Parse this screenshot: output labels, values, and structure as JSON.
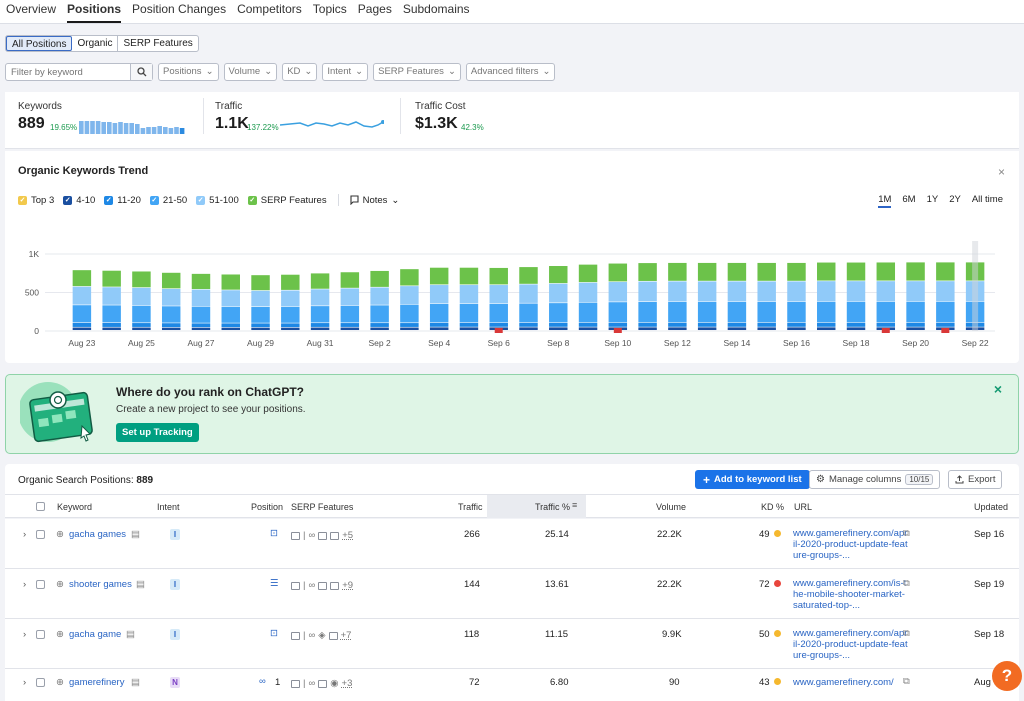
{
  "tabs": [
    "Overview",
    "Positions",
    "Position Changes",
    "Competitors",
    "Topics",
    "Pages",
    "Subdomains"
  ],
  "active_tab": "Positions",
  "segments": [
    "All Positions",
    "Organic",
    "SERP Features"
  ],
  "filter": {
    "placeholder": "Filter by keyword"
  },
  "dropdowns": [
    "Positions",
    "Volume",
    "KD",
    "Intent",
    "SERP Features",
    "Advanced filters"
  ],
  "kpis": [
    {
      "label": "Keywords",
      "value": "889",
      "change": "19.65%"
    },
    {
      "label": "Traffic",
      "value": "1.1K",
      "change": "137.22%"
    },
    {
      "label": "Traffic Cost",
      "value": "$1.3K",
      "change": "42.3%"
    }
  ],
  "trend": {
    "title": "Organic Keywords Trend",
    "legend": [
      {
        "label": "Top 3",
        "color": "#f2c94c"
      },
      {
        "label": "4-10",
        "color": "#1a4fa0"
      },
      {
        "label": "11-20",
        "color": "#1e88e5"
      },
      {
        "label": "21-50",
        "color": "#42a5f5"
      },
      {
        "label": "51-100",
        "color": "#90caf9"
      },
      {
        "label": "SERP Features",
        "color": "#6cc24a"
      }
    ],
    "notes_label": "Notes",
    "ranges": [
      "1M",
      "6M",
      "1Y",
      "2Y",
      "All time"
    ],
    "active_range": "1M"
  },
  "chart_data": {
    "type": "bar",
    "stacked": true,
    "ylim": [
      0,
      1000
    ],
    "yticks": [
      "1K",
      "500",
      "0"
    ],
    "x_tick_labels": [
      "Aug 23",
      "Aug 25",
      "Aug 27",
      "Aug 29",
      "Aug 31",
      "Sep 2",
      "Sep 4",
      "Sep 6",
      "Sep 8",
      "Sep 10",
      "Sep 12",
      "Sep 14",
      "Sep 16",
      "Sep 18",
      "Sep 20",
      "Sep 22"
    ],
    "categories": [
      "Aug 23",
      "Aug 24",
      "Aug 25",
      "Aug 26",
      "Aug 27",
      "Aug 28",
      "Aug 29",
      "Aug 30",
      "Aug 31",
      "Sep 1",
      "Sep 2",
      "Sep 3",
      "Sep 4",
      "Sep 5",
      "Sep 6",
      "Sep 7",
      "Sep 8",
      "Sep 9",
      "Sep 10",
      "Sep 11",
      "Sep 12",
      "Sep 13",
      "Sep 14",
      "Sep 15",
      "Sep 16",
      "Sep 17",
      "Sep 18",
      "Sep 19",
      "Sep 20",
      "Sep 21",
      "Sep 22"
    ],
    "series": [
      {
        "name": "Top 3",
        "color": "#f2c94c",
        "values": [
          5,
          5,
          5,
          5,
          5,
          5,
          5,
          5,
          5,
          5,
          5,
          5,
          5,
          5,
          5,
          5,
          5,
          5,
          5,
          5,
          5,
          5,
          5,
          5,
          5,
          5,
          5,
          5,
          5,
          5,
          5
        ]
      },
      {
        "name": "4-10",
        "color": "#1a4fa0",
        "values": [
          40,
          40,
          40,
          38,
          38,
          38,
          38,
          38,
          40,
          40,
          40,
          40,
          42,
          42,
          42,
          42,
          42,
          42,
          42,
          42,
          42,
          42,
          42,
          42,
          42,
          42,
          42,
          42,
          42,
          42,
          42
        ]
      },
      {
        "name": "11-20",
        "color": "#1e88e5",
        "values": [
          60,
          60,
          58,
          58,
          56,
          56,
          56,
          56,
          58,
          58,
          58,
          58,
          60,
          60,
          60,
          60,
          60,
          62,
          62,
          62,
          62,
          62,
          62,
          62,
          62,
          62,
          62,
          62,
          62,
          62,
          62
        ]
      },
      {
        "name": "21-50",
        "color": "#42a5f5",
        "values": [
          230,
          228,
          225,
          220,
          218,
          215,
          213,
          215,
          220,
          225,
          230,
          240,
          245,
          245,
          245,
          250,
          255,
          260,
          265,
          268,
          270,
          270,
          270,
          270,
          270,
          272,
          272,
          272,
          272,
          272,
          272
        ]
      },
      {
        "name": "51-100",
        "color": "#90caf9",
        "values": [
          240,
          235,
          232,
          225,
          220,
          215,
          210,
          212,
          218,
          225,
          232,
          240,
          245,
          245,
          245,
          248,
          252,
          258,
          262,
          265,
          265,
          265,
          265,
          265,
          265,
          266,
          266,
          266,
          266,
          266,
          266
        ]
      },
      {
        "name": "SERP Features",
        "color": "#6cc24a",
        "values": [
          215,
          215,
          213,
          210,
          205,
          205,
          203,
          205,
          207,
          210,
          215,
          220,
          225,
          225,
          222,
          225,
          230,
          235,
          240,
          240,
          240,
          240,
          240,
          240,
          240,
          242,
          242,
          243,
          244,
          244,
          244
        ]
      }
    ],
    "notes_markers": [
      "Sep 6",
      "Sep 10",
      "Sep 19",
      "Sep 21"
    ]
  },
  "promo": {
    "title": "Where do you rank on ChatGPT?",
    "subtitle": "Create a new project to see your positions.",
    "button": "Set up Tracking"
  },
  "table": {
    "title_prefix": "Organic Search Positions:",
    "count": "889",
    "add_button": "Add to keyword list",
    "manage_columns": "Manage columns",
    "manage_badge": "10/15",
    "export": "Export",
    "headers": {
      "keyword": "Keyword",
      "intent": "Intent",
      "position": "Position",
      "serp": "SERP Features",
      "traffic": "Traffic",
      "traffic_pct": "Traffic %",
      "volume": "Volume",
      "kd": "KD %",
      "url": "URL",
      "updated": "Updated"
    },
    "rows": [
      {
        "keyword": "gacha games",
        "intent": "I",
        "intent_color": "#d6eaf8",
        "intent_text": "#2a65c4",
        "position": "",
        "serp_more": "+5",
        "traffic": "266",
        "traffic_pct": "25.14",
        "volume": "22.2K",
        "kd": "49",
        "kd_color": "#f5b82e",
        "url": "www.gamerefinery.com/april-2020-product-update-feature-groups-...",
        "updated": "Sep 16"
      },
      {
        "keyword": "shooter games",
        "intent": "I",
        "intent_color": "#d6eaf8",
        "intent_text": "#2a65c4",
        "position": "",
        "serp_more": "+9",
        "traffic": "144",
        "traffic_pct": "13.61",
        "volume": "22.2K",
        "kd": "72",
        "kd_color": "#e8453c",
        "url": "www.gamerefinery.com/is-the-mobile-shooter-market-saturated-top-...",
        "updated": "Sep 19"
      },
      {
        "keyword": "gacha game",
        "intent": "I",
        "intent_color": "#d6eaf8",
        "intent_text": "#2a65c4",
        "position": "",
        "serp_more": "+7",
        "traffic": "118",
        "traffic_pct": "11.15",
        "volume": "9.9K",
        "kd": "50",
        "kd_color": "#f5b82e",
        "url": "www.gamerefinery.com/april-2020-product-update-feature-groups-...",
        "updated": "Sep 18"
      },
      {
        "keyword": "gamerefinery",
        "intent": "N",
        "intent_color": "#e8dcf7",
        "intent_text": "#7b3fc4",
        "position": "1",
        "serp_more": "+3",
        "traffic": "72",
        "traffic_pct": "6.80",
        "volume": "90",
        "kd": "43",
        "kd_color": "#f5b82e",
        "url": "www.gamerefinery.com/",
        "updated": "Aug"
      }
    ]
  },
  "help_label": "?"
}
